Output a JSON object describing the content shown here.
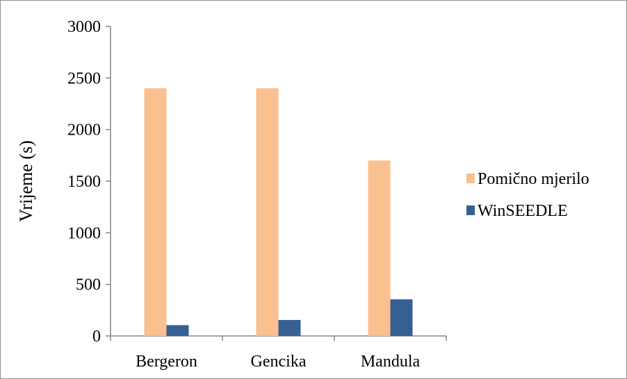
{
  "chart_data": {
    "type": "bar",
    "title": "",
    "xlabel": "",
    "ylabel": "Vrijeme (s)",
    "categories": [
      "Bergeron",
      "Gencika",
      "Mandula"
    ],
    "series": [
      {
        "name": "Pomično mjerilo",
        "values": [
          2400,
          2400,
          1700
        ],
        "color": "#fac090"
      },
      {
        "name": "WinSEEDLE",
        "values": [
          105,
          155,
          355
        ],
        "color": "#376092"
      }
    ],
    "ylim": [
      0,
      3000
    ],
    "yticks": [
      0,
      500,
      1000,
      1500,
      2000,
      2500,
      3000
    ],
    "grid": false,
    "legend_position": "right"
  }
}
